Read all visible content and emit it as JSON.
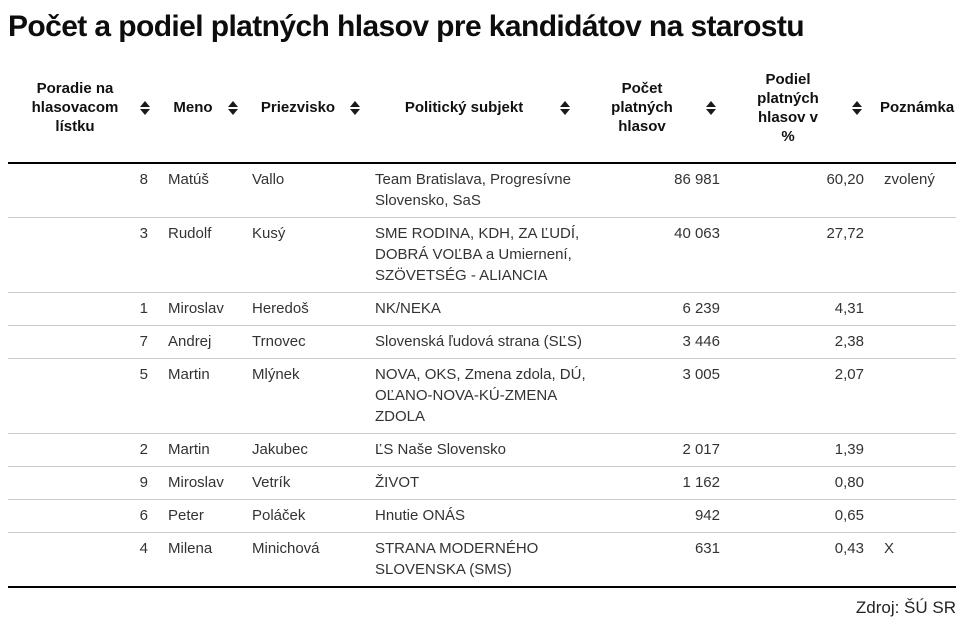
{
  "title": "Počet a podiel platných hlasov pre kandidátov na starostu",
  "source_note": "Zdroj: ŠÚ SR",
  "colors": {
    "text": "#333333",
    "heading": "#0d0d0d",
    "row_divider": "#cccccc",
    "strong_rule": "#000000"
  },
  "icons": {
    "sort": "sort-arrows-icon"
  },
  "chart_data": {
    "type": "table",
    "title": "Počet a podiel platných hlasov pre kandidátov na starostu",
    "columns": [
      {
        "key": "poradie",
        "label": "Poradie na hlasovacom lístku",
        "sortable": true
      },
      {
        "key": "meno",
        "label": "Meno",
        "sortable": true
      },
      {
        "key": "priezvisko",
        "label": "Priezvisko",
        "sortable": true
      },
      {
        "key": "politicky-subjekt",
        "label": "Politický subjekt",
        "sortable": true
      },
      {
        "key": "pocet-platnych-hlasov",
        "label": "Počet platných hlasov",
        "sortable": true
      },
      {
        "key": "podiel-platnych-hlasov",
        "label": "Podiel platných hlasov v %",
        "sortable": true
      },
      {
        "key": "poznamka",
        "label": "Poznámka",
        "sortable": false
      }
    ],
    "rows": [
      [
        "8",
        "Matúš",
        "Vallo",
        "Team Bratislava, Progresívne\nSlovensko, SaS",
        "86 981",
        "60,20",
        "zvolený"
      ],
      [
        "3",
        "Rudolf",
        "Kusý",
        "SME RODINA, KDH, ZA ĽUDÍ,\nDOBRÁ VOĽBA a Umiernení,\nSZÖVETSÉG - ALIANCIA",
        "40 063",
        "27,72",
        ""
      ],
      [
        "1",
        "Miroslav",
        "Heredoš",
        "NK/NEKA",
        "6 239",
        "4,31",
        ""
      ],
      [
        "7",
        "Andrej",
        "Trnovec",
        "Slovenská ľudová strana (SĽS)",
        "3 446",
        "2,38",
        ""
      ],
      [
        "5",
        "Martin",
        "Mlýnek",
        "NOVA, OKS, Zmena zdola, DÚ,\nOĽANO-NOVA-KÚ-ZMENA\nZDOLA",
        "3 005",
        "2,07",
        ""
      ],
      [
        "2",
        "Martin",
        "Jakubec",
        "ĽS Naše Slovensko",
        "2 017",
        "1,39",
        ""
      ],
      [
        "9",
        "Miroslav",
        "Vetrík",
        "ŽIVOT",
        "1 162",
        "0,80",
        ""
      ],
      [
        "6",
        "Peter",
        "Poláček",
        "Hnutie ONÁS",
        "942",
        "0,65",
        ""
      ],
      [
        "4",
        "Milena",
        "Minichová",
        "STRANA MODERNÉHO\nSLOVENSKA (SMS)",
        "631",
        "0,43",
        "X"
      ]
    ]
  }
}
